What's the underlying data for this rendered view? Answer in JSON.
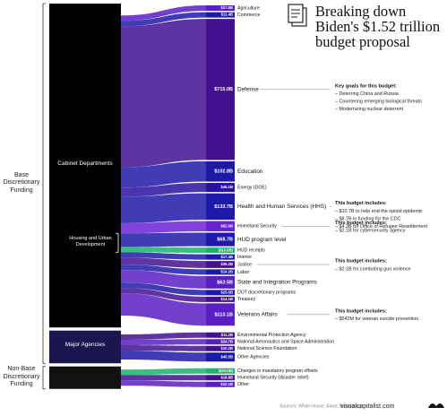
{
  "chart_data": {
    "type": "sankey",
    "title": "Breaking down Biden's $1.52 trillion budget proposal",
    "source": "Sources: White House, Axios, Bloomberg",
    "site": "visualcapitalist.com",
    "groups": [
      {
        "label": "Base Discretionary Funding"
      },
      {
        "label": "Non-Base Discretionary Funding"
      }
    ],
    "sources": [
      {
        "label": "Cabinet Departments",
        "group": 0,
        "color": "#000000"
      },
      {
        "label": "Major Agencies",
        "group": 0,
        "color": "#1b1650"
      },
      {
        "label": null,
        "group": 1,
        "color": "#111111"
      }
    ],
    "hud_label": "Housing and Urban Development",
    "flows": [
      {
        "name": "Agriculture",
        "value": 27.8,
        "value_label": "$27.8B",
        "color": "#5a1fc4",
        "source": 0
      },
      {
        "name": "Commerce",
        "value": 11.4,
        "value_label": "$11.4B",
        "color": "#1d1aa8",
        "source": 0
      },
      {
        "name": "Defense",
        "value": 715.0,
        "value_label": "$715.0B",
        "color": "#43108f",
        "source": 0
      },
      {
        "name": "Education",
        "value": 102.8,
        "value_label": "$102.8B",
        "color": "#1d1aa8",
        "source": 0
      },
      {
        "name": "Energy (DOE)",
        "value": 46.1,
        "value_label": "$46.1B",
        "color": "#2a12a0",
        "source": 0
      },
      {
        "name": "Health and Human Services (HHS)",
        "value": 133.7,
        "value_label": "$133.7B",
        "color": "#1d1aa8",
        "source": 0
      },
      {
        "name": "Homeland Security",
        "value": 52.0,
        "value_label": "$52.0B",
        "color": "#6a22d6",
        "source": 0
      },
      {
        "name": "HUD program level",
        "value": 68.7,
        "value_label": "$68.7B",
        "color": "#1d1aa8",
        "source": 0
      },
      {
        "name": "HUD receipts",
        "value": -10.5,
        "value_label": "($10.5B)",
        "color": "#19b36b",
        "source": 0
      },
      {
        "name": "Interior",
        "value": 17.4,
        "value_label": "$17.4B",
        "color": "#1d1aa8",
        "source": 0
      },
      {
        "name": "Justice",
        "value": 35.2,
        "value_label": "$35.2B",
        "color": "#43108f",
        "source": 0
      },
      {
        "name": "Labor",
        "value": 14.2,
        "value_label": "$14.2B",
        "color": "#1d1aa8",
        "source": 0
      },
      {
        "name": "State and Integration Programs",
        "value": 63.5,
        "value_label": "$63.5B",
        "color": "#5a1fc4",
        "source": 0
      },
      {
        "name": "DOT discretionary programs",
        "value": 25.6,
        "value_label": "$25.6B",
        "color": "#1d1aa8",
        "source": 0
      },
      {
        "name": "Treasury",
        "value": 14.1,
        "value_label": "$14.1B",
        "color": "#43108f",
        "source": 0
      },
      {
        "name": "Veterans Affairs",
        "value": 113.1,
        "value_label": "$113.1B",
        "color": "#5a1fc4",
        "source": 0
      },
      {
        "name": "Environmental Protection Agency",
        "value": 11.2,
        "value_label": "$11.2B",
        "color": "#43108f",
        "source": 1
      },
      {
        "name": "National Aeronautics and Space Administration",
        "value": 24.7,
        "value_label": "$24.7B",
        "color": "#5a1fc4",
        "source": 1
      },
      {
        "name": "National Science Foundation",
        "value": 10.2,
        "value_label": "$10.2B",
        "color": "#43108f",
        "source": 1
      },
      {
        "name": "Other Agencies",
        "value": 45.5,
        "value_label": "$45.5B",
        "color": "#1d1aa8",
        "source": 1
      },
      {
        "name": "Changes in mandatory program offsets",
        "value": -20.0,
        "value_label": "($20.0B)",
        "color": "#19b36b",
        "source": 2
      },
      {
        "name": "Homeland Security (disaster relief)",
        "value": 18.8,
        "value_label": "$18.8B",
        "color": "#43108f",
        "source": 2
      },
      {
        "name": "Other",
        "value": 10.1,
        "value_label": "$10.1B",
        "color": "#5a1fc4",
        "source": 2
      }
    ],
    "annotations": [
      {
        "heading": "Key goals for this budget:",
        "items": [
          "– Deterring China and Russia",
          "– Countering emerging biological threats",
          "– Modernizing nuclear deterrent"
        ]
      },
      {
        "heading": "This budget includes:",
        "items": [
          "– $10.7B to help end the opioid epidemic",
          "– $8.7B in funding for the CDC",
          "– $4.3B for Office of Refugee Resettlement"
        ]
      },
      {
        "heading": "This budget includes:",
        "items": [
          "– $2.1B for cybersecurity agency"
        ]
      },
      {
        "heading": "This budget includes:",
        "items": [
          "– $2.1B for combating gun violence"
        ]
      },
      {
        "heading": "This budget includes:",
        "items": [
          "– $542M for veteran suicide prevention"
        ]
      }
    ]
  }
}
